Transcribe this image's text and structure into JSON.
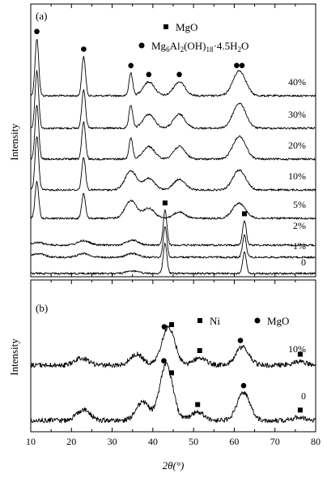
{
  "chart_data": [
    {
      "type": "line",
      "panel_label": "(a)",
      "ylabel": "Intensity",
      "xlabel": "2θ(°)",
      "xlim": [
        10,
        80
      ],
      "legend": [
        {
          "marker": "square",
          "label": "MgO"
        },
        {
          "marker": "circle",
          "label": "Mg6Al2(OH)18·4.5H2O",
          "label_parts": [
            "Mg",
            "6",
            "Al",
            "2",
            "(OH)",
            "18",
            "·4.5H",
            "2",
            "O"
          ]
        }
      ],
      "series": [
        {
          "name": "40%",
          "baseline": 0.0,
          "peaks": [
            [
              11.5,
              0.9
            ],
            [
              23.0,
              0.62
            ],
            [
              34.6,
              0.36
            ],
            [
              39.0,
              0.22
            ],
            [
              46.5,
              0.22
            ],
            [
              60.6,
              0.22
            ],
            [
              61.9,
              0.22
            ]
          ]
        },
        {
          "name": "30%",
          "baseline": 0.0,
          "peaks": [
            [
              11.5,
              0.9
            ],
            [
              23.0,
              0.62
            ],
            [
              34.6,
              0.36
            ],
            [
              39.0,
              0.22
            ],
            [
              46.5,
              0.22
            ],
            [
              60.6,
              0.22
            ],
            [
              61.9,
              0.22
            ]
          ]
        },
        {
          "name": "20%",
          "baseline": 0.0,
          "peaks": [
            [
              11.5,
              0.85
            ],
            [
              23.0,
              0.58
            ],
            [
              34.6,
              0.33
            ],
            [
              39.0,
              0.2
            ],
            [
              46.5,
              0.2
            ],
            [
              60.6,
              0.2
            ],
            [
              61.9,
              0.2
            ]
          ]
        },
        {
          "name": "10%",
          "baseline": 0.0,
          "peaks": [
            [
              11.5,
              0.85
            ],
            [
              23.0,
              0.52
            ],
            [
              34.6,
              0.3
            ],
            [
              39.0,
              0.18
            ],
            [
              46.5,
              0.17
            ],
            [
              60.6,
              0.18
            ],
            [
              61.9,
              0.17
            ]
          ]
        },
        {
          "name": "5%",
          "baseline": 0.0,
          "peaks": [
            [
              11.5,
              0.58
            ],
            [
              23.0,
              0.4
            ],
            [
              34.6,
              0.28
            ],
            [
              39.0,
              0.16
            ],
            [
              46.5,
              0.1
            ],
            [
              60.6,
              0.15
            ],
            [
              61.9,
              0.12
            ]
          ]
        },
        {
          "name": "2%",
          "baseline": 0.0,
          "peaks": [
            [
              11.8,
              0.04
            ],
            [
              23.0,
              0.07
            ],
            [
              35.0,
              0.08
            ],
            [
              43.0,
              0.55
            ],
            [
              62.5,
              0.38
            ]
          ]
        },
        {
          "name": "1%",
          "baseline": 0.0,
          "peaks": [
            [
              12.0,
              0.06
            ],
            [
              23.0,
              0.06
            ],
            [
              35.0,
              0.06
            ],
            [
              43.0,
              0.48
            ],
            [
              62.5,
              0.35
            ]
          ]
        },
        {
          "name": "0",
          "baseline": 0.0,
          "peaks": [
            [
              35.0,
              0.04
            ],
            [
              43.0,
              0.48
            ],
            [
              62.5,
              0.33
            ]
          ]
        }
      ],
      "markers": [
        {
          "type": "circle",
          "x": 11.5,
          "series": "40%"
        },
        {
          "type": "circle",
          "x": 23.0,
          "series": "40%"
        },
        {
          "type": "circle",
          "x": 34.6,
          "series": "40%"
        },
        {
          "type": "circle",
          "x": 39.0,
          "series": "40%"
        },
        {
          "type": "circle",
          "x": 46.5,
          "series": "40%"
        },
        {
          "type": "circle",
          "x": 60.6,
          "series": "40%"
        },
        {
          "type": "circle",
          "x": 61.9,
          "series": "40%"
        },
        {
          "type": "square",
          "x": 43.0,
          "series": "2%"
        },
        {
          "type": "square",
          "x": 62.5,
          "series": "2%"
        }
      ]
    },
    {
      "type": "line",
      "panel_label": "(b)",
      "ylabel": "Intensity",
      "xlabel": "2θ(°)",
      "xlim": [
        10,
        80
      ],
      "xticks": [
        10,
        20,
        30,
        40,
        50,
        60,
        70,
        80
      ],
      "legend": [
        {
          "marker": "square",
          "label": "Ni"
        },
        {
          "marker": "circle",
          "label": "MgO"
        }
      ],
      "series": [
        {
          "name": "10%",
          "baseline": 0.0,
          "peaks": [
            [
              22.5,
              0.12
            ],
            [
              36.0,
              0.18
            ],
            [
              43.8,
              0.62
            ],
            [
              51.5,
              0.12
            ],
            [
              62.0,
              0.3
            ],
            [
              76.0,
              0.06
            ]
          ]
        },
        {
          "name": "0",
          "baseline": 0.0,
          "peaks": [
            [
              23.0,
              0.18
            ],
            [
              37.5,
              0.3
            ],
            [
              43.3,
              0.92
            ],
            [
              51.0,
              0.14
            ],
            [
              62.3,
              0.45
            ],
            [
              76.0,
              0.05
            ]
          ]
        }
      ],
      "markers": [
        {
          "type": "circle",
          "x": 42.8,
          "series": "10%"
        },
        {
          "type": "square",
          "x": 44.6,
          "series": "10%"
        },
        {
          "type": "square",
          "x": 51.5,
          "series": "10%"
        },
        {
          "type": "circle",
          "x": 61.5,
          "series": "10%"
        },
        {
          "type": "square",
          "x": 76.2,
          "series": "10%"
        },
        {
          "type": "circle",
          "x": 42.7,
          "series": "0"
        },
        {
          "type": "square",
          "x": 44.6,
          "series": "0"
        },
        {
          "type": "square",
          "x": 51.0,
          "series": "0"
        },
        {
          "type": "circle",
          "x": 62.3,
          "series": "0"
        },
        {
          "type": "square",
          "x": 76.2,
          "series": "0"
        }
      ]
    }
  ]
}
